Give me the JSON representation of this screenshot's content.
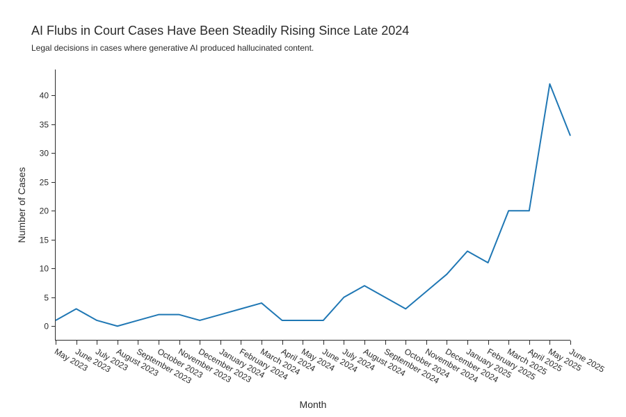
{
  "chart_data": {
    "type": "line",
    "title": "AI Flubs in Court Cases Have Been Steadily Rising Since Late 2024",
    "subtitle": "Legal decisions in cases where generative AI produced hallucinated content.",
    "xlabel": "Month",
    "ylabel": "Number of Cases",
    "categories": [
      "May 2023",
      "June 2023",
      "July 2023",
      "August 2023",
      "September 2023",
      "October 2023",
      "November 2023",
      "December 2023",
      "January 2024",
      "February 2024",
      "March 2024",
      "April 2024",
      "May 2024",
      "June 2024",
      "July 2024",
      "August 2024",
      "September 2024",
      "October 2024",
      "November 2024",
      "December 2024",
      "January 2025",
      "February 2025",
      "March 2025",
      "April 2025",
      "May 2025",
      "June 2025"
    ],
    "series": [
      {
        "values": [
          1,
          3,
          1,
          0,
          1,
          2,
          2,
          1,
          2,
          3,
          4,
          1,
          1,
          1,
          5,
          7,
          5,
          3,
          6,
          9,
          13,
          11,
          20,
          20,
          42,
          33
        ]
      }
    ],
    "ylim": [
      -2.5,
      44.5
    ],
    "yticks": [
      0,
      5,
      10,
      15,
      20,
      25,
      30,
      35,
      40
    ],
    "grid": false,
    "line_color": "#1f77b4"
  }
}
